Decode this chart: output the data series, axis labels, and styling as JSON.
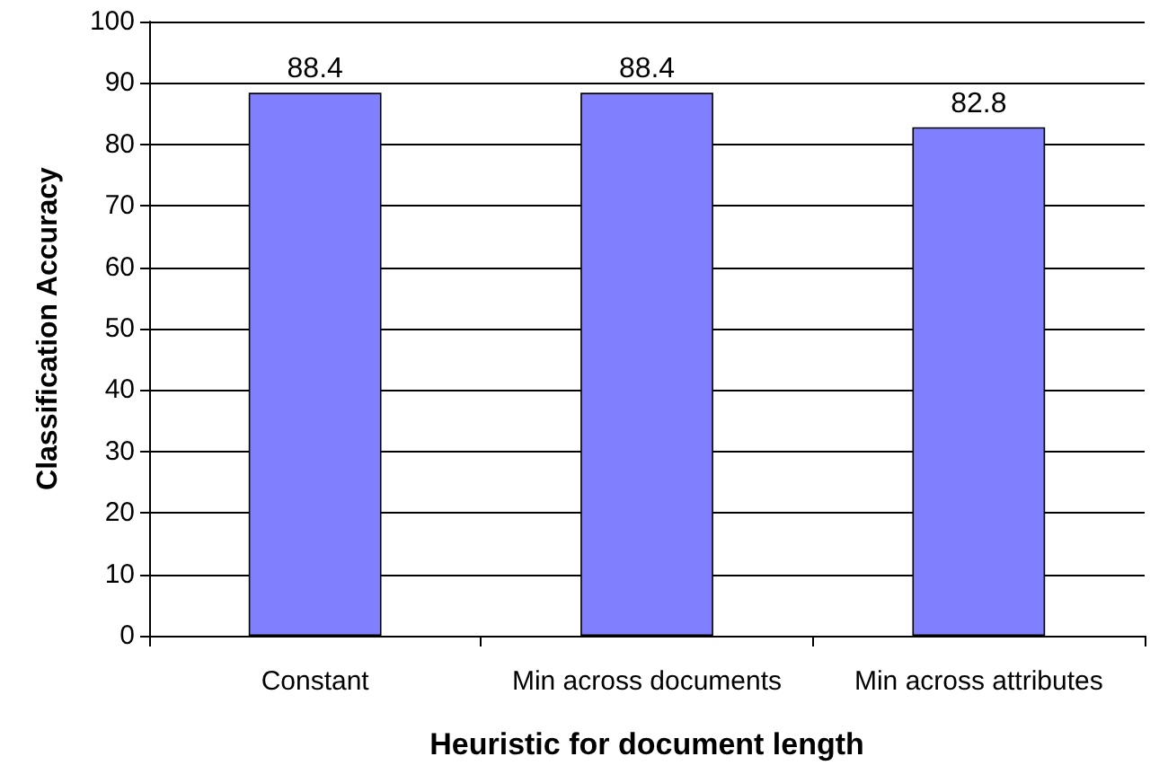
{
  "chart_data": {
    "type": "bar",
    "xlabel": "Heuristic for document length",
    "ylabel": "Classification Accuracy",
    "categories": [
      "Constant",
      "Min across documents",
      "Min across attributes"
    ],
    "values": [
      88.4,
      88.4,
      82.8
    ],
    "color": "#8080ff",
    "data_labels": true,
    "ylim": [
      0,
      100
    ],
    "yticks": [
      0,
      10,
      20,
      30,
      40,
      50,
      60,
      70,
      80,
      90,
      100
    ],
    "grid": "y"
  }
}
